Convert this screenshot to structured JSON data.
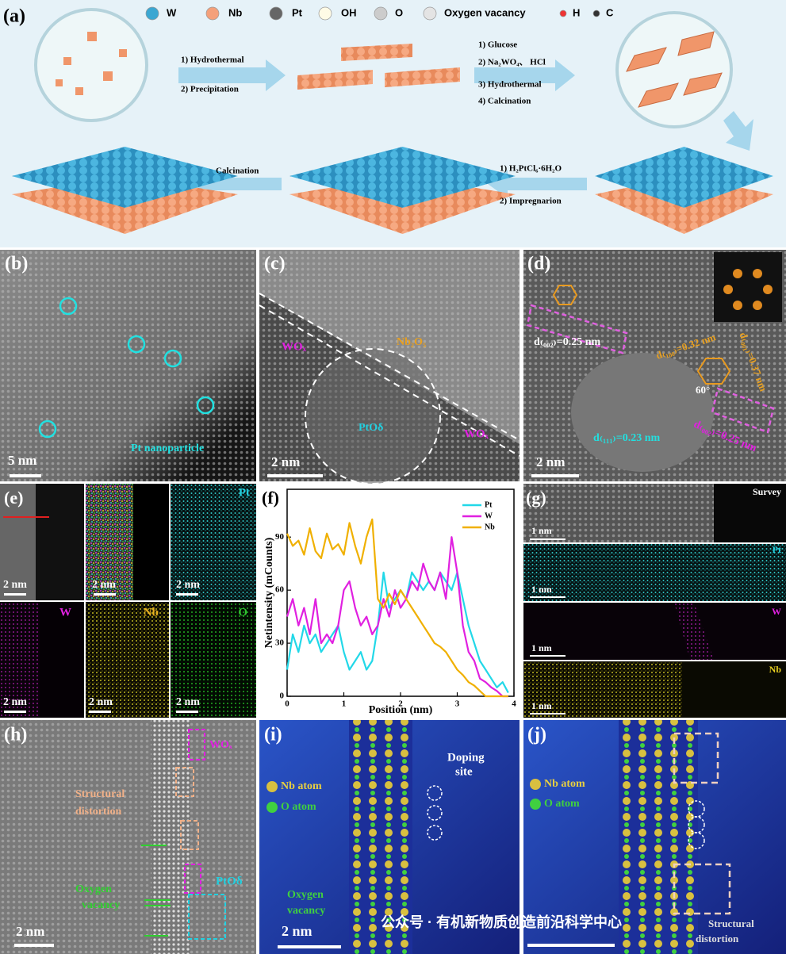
{
  "panel_labels": [
    "(a)",
    "(b)",
    "(c)",
    "(d)",
    "(e)",
    "(f)",
    "(g)",
    "(h)",
    "(i)",
    "(j)"
  ],
  "panel_a": {
    "legend": [
      "W",
      "Nb",
      "Pt",
      "OH",
      "O",
      "Oxygen vacancy",
      "H",
      "C"
    ],
    "step1": [
      "1) Hydrothermal",
      "2) Precipitation"
    ],
    "step2": [
      "1) Glucose",
      "2) Na₂WO₄、 HCl",
      "3) Hydrothermal",
      "4) Calcination"
    ],
    "step3": [
      "1) H₂PtCl₆·6H₂O",
      "2) Impregnarion"
    ],
    "step4": "Calcination"
  },
  "panel_b": {
    "label": "Pt nanoparticle",
    "scale": "5 nm"
  },
  "panel_c": {
    "labels": [
      "WOₓ",
      "Nb₂O₅",
      "PtOδ",
      "WOₓ"
    ],
    "scale": "2 nm"
  },
  "panel_d": {
    "labels": [
      "d₍₀₀₂₎=0.25 nm",
      "d₍₁₀₀₎=0.32 nm",
      "d₍₀₀₁₎=0.37 nm",
      "60°",
      "d₍₁₁₁₎=0.23 nm",
      "d₍₀₀₂₎=0.25 nm"
    ],
    "scale": "2 nm"
  },
  "panel_e": {
    "maps": [
      "Pt",
      "W",
      "Nb",
      "O"
    ],
    "scales": [
      "2 nm",
      "2 nm",
      "2 nm",
      "2 nm",
      "2 nm",
      "2 nm"
    ]
  },
  "chart_data": {
    "type": "line",
    "xlabel": "Position (nm)",
    "ylabel": "Netintensity (mCounts)",
    "x": [
      0,
      0.1,
      0.2,
      0.3,
      0.4,
      0.5,
      0.6,
      0.7,
      0.8,
      0.9,
      1.0,
      1.1,
      1.2,
      1.3,
      1.4,
      1.5,
      1.6,
      1.7,
      1.8,
      1.9,
      2.0,
      2.1,
      2.2,
      2.3,
      2.4,
      2.5,
      2.6,
      2.7,
      2.8,
      2.9,
      3.0,
      3.1,
      3.2,
      3.3,
      3.4,
      3.5,
      3.6,
      3.7,
      3.8,
      3.9
    ],
    "series": [
      {
        "name": "Pt",
        "color": "#22d8e8",
        "values": [
          15,
          35,
          25,
          40,
          30,
          35,
          25,
          30,
          35,
          40,
          25,
          15,
          20,
          25,
          15,
          20,
          40,
          70,
          50,
          55,
          60,
          55,
          70,
          65,
          60,
          65,
          60,
          70,
          65,
          60,
          70,
          55,
          40,
          30,
          20,
          15,
          10,
          5,
          8,
          2
        ]
      },
      {
        "name": "W",
        "color": "#e020e0",
        "values": [
          45,
          55,
          40,
          50,
          35,
          55,
          30,
          35,
          30,
          40,
          60,
          65,
          50,
          40,
          45,
          35,
          40,
          55,
          45,
          60,
          50,
          55,
          65,
          60,
          75,
          65,
          60,
          70,
          55,
          90,
          70,
          40,
          25,
          20,
          10,
          8,
          5,
          3,
          0,
          0
        ]
      },
      {
        "name": "Nb",
        "color": "#f0b000",
        "values": [
          92,
          85,
          88,
          80,
          95,
          82,
          78,
          92,
          83,
          86,
          80,
          98,
          85,
          75,
          90,
          100,
          55,
          50,
          58,
          52,
          60,
          55,
          50,
          45,
          40,
          35,
          30,
          28,
          25,
          20,
          15,
          12,
          8,
          6,
          3,
          0,
          0,
          0,
          0,
          0
        ]
      }
    ],
    "xlim": [
      0,
      4
    ],
    "xticks": [
      0,
      1,
      2,
      3,
      4
    ],
    "ylim": [
      0,
      117
    ],
    "yticks": [
      0,
      30,
      60,
      90
    ],
    "legend": "upper right"
  },
  "panel_g": {
    "maps": [
      "Survey",
      "Pt",
      "W",
      "Nb"
    ],
    "scales": [
      "1 nm",
      "1 nm",
      "1 nm",
      "1 nm"
    ]
  },
  "panel_h": {
    "labels": [
      "WOₓ",
      "Structural",
      "distortion",
      "PtOδ",
      "Oxygen",
      "vacancy"
    ],
    "scale": "2 nm"
  },
  "panel_i": {
    "legend": [
      "Nb atom",
      "O  atom"
    ],
    "labels": [
      "Doping",
      "site",
      "Oxygen",
      "vacancy"
    ],
    "scale": "2 nm"
  },
  "panel_j": {
    "legend": [
      "Nb atom",
      "O  atom"
    ],
    "labels": [
      "Structural",
      "distortion"
    ]
  },
  "watermark": "公众号 · 有机新物质创造前沿科学中心"
}
